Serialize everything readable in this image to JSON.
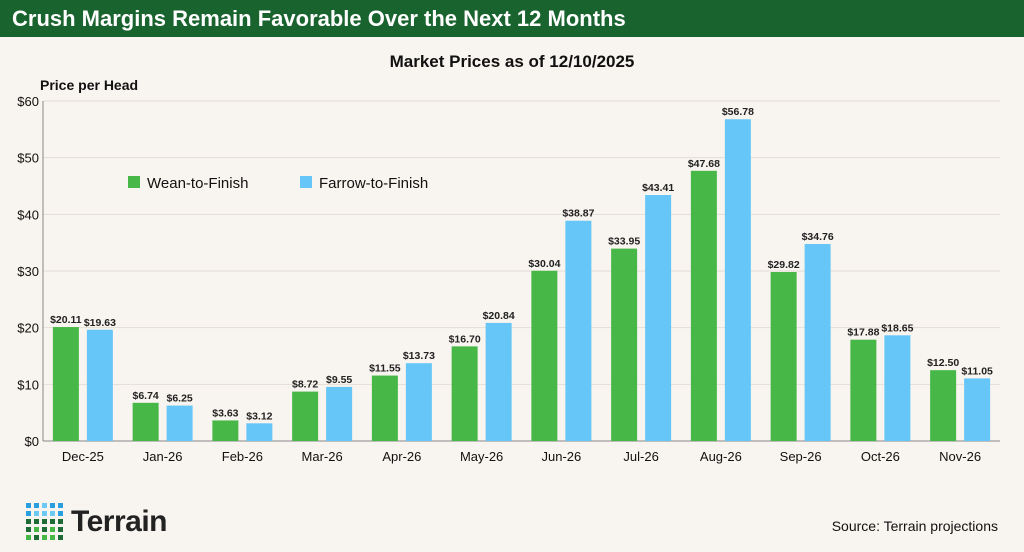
{
  "header": {
    "title": "Crush Margins Remain Favorable Over the Next 12 Months"
  },
  "footer": {
    "source": "Source: Terrain projections",
    "logo_text": "Terrain"
  },
  "colors": {
    "header_bg": "#19632f",
    "wean": "#47b847",
    "farrow": "#66c6f7",
    "background": "#f8f4ef"
  },
  "chart_data": {
    "type": "bar",
    "title": "Market Prices as of 12/10/2025",
    "ylabel": "Price per Head",
    "xlabel": "",
    "ylim": [
      0,
      60
    ],
    "yticks": [
      0,
      10,
      20,
      30,
      40,
      50,
      60
    ],
    "ytick_labels": [
      "$0",
      "$10",
      "$20",
      "$30",
      "$40",
      "$50",
      "$60"
    ],
    "grid": true,
    "legend_position": "top-left",
    "categories": [
      "Dec-25",
      "Jan-26",
      "Feb-26",
      "Mar-26",
      "Apr-26",
      "May-26",
      "Jun-26",
      "Jul-26",
      "Aug-26",
      "Sep-26",
      "Oct-26",
      "Nov-26"
    ],
    "series": [
      {
        "name": "Wean-to-Finish",
        "values": [
          20.11,
          6.74,
          3.63,
          8.72,
          11.55,
          16.7,
          30.04,
          33.95,
          47.68,
          29.82,
          17.88,
          12.5
        ],
        "labels": [
          "$20.11",
          "$6.74",
          "$3.63",
          "$8.72",
          "$11.55",
          "$16.70",
          "$30.04",
          "$33.95",
          "$47.68",
          "$29.82",
          "$17.88",
          "$12.50"
        ]
      },
      {
        "name": "Farrow-to-Finish",
        "values": [
          19.63,
          6.25,
          3.12,
          9.55,
          13.73,
          20.84,
          38.87,
          43.41,
          56.78,
          34.76,
          18.65,
          11.05
        ],
        "labels": [
          "$19.63",
          "$6.25",
          "$3.12",
          "$9.55",
          "$13.73",
          "$20.84",
          "$38.87",
          "$43.41",
          "$56.78",
          "$34.76",
          "$18.65",
          "$11.05"
        ]
      }
    ]
  }
}
